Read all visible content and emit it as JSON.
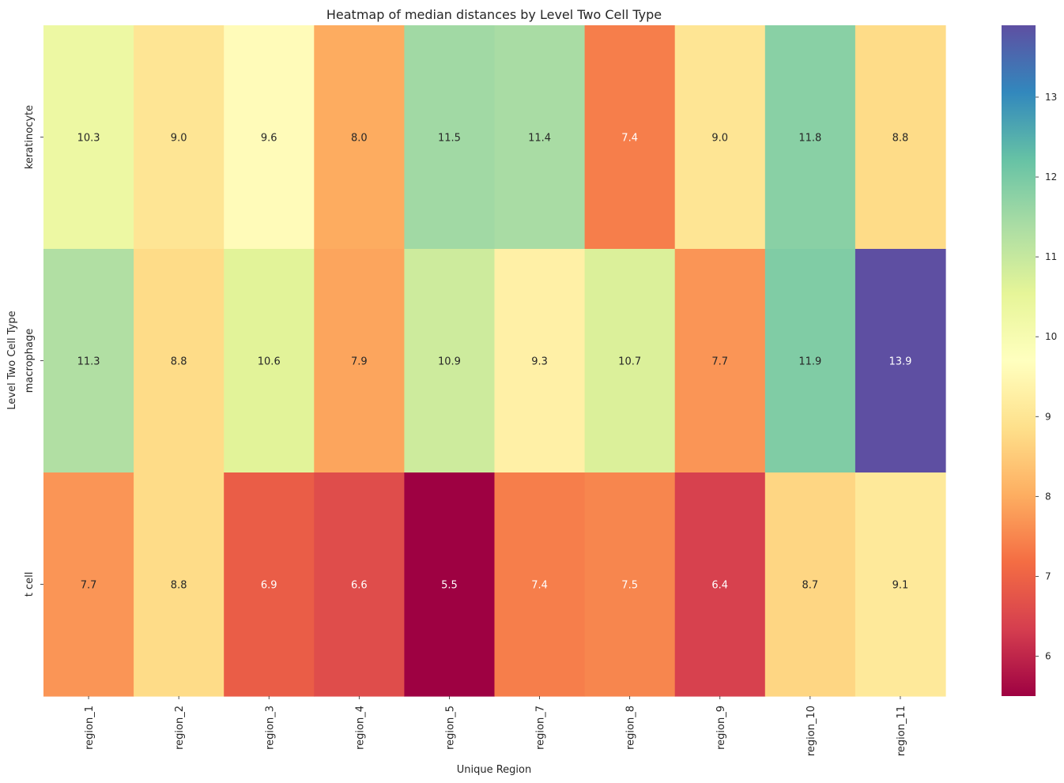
{
  "chart_data": {
    "type": "heatmap",
    "title": "Heatmap of median distances by Level Two Cell Type",
    "xlabel": "Unique Region",
    "ylabel": "Level Two Cell Type",
    "columns": [
      "region_1",
      "region_2",
      "region_3",
      "region_4",
      "region_5",
      "region_7",
      "region_8",
      "region_9",
      "region_10",
      "region_11"
    ],
    "rows": [
      "keratinocyte",
      "macrophage",
      "t cell"
    ],
    "values": [
      [
        10.3,
        9.0,
        9.6,
        8.0,
        11.5,
        11.4,
        7.4,
        9.0,
        11.8,
        8.8
      ],
      [
        11.3,
        8.8,
        10.6,
        7.9,
        10.9,
        9.3,
        10.7,
        7.7,
        11.9,
        13.9
      ],
      [
        7.7,
        8.8,
        6.9,
        6.6,
        5.5,
        7.4,
        7.5,
        6.4,
        8.7,
        9.1
      ]
    ],
    "value_labels": [
      [
        "10.3",
        "9.0",
        "9.6",
        "8.0",
        "11.5",
        "11.4",
        "7.4",
        "9.0",
        "11.8",
        "8.8"
      ],
      [
        "11.3",
        "8.8",
        "10.6",
        "7.9",
        "10.9",
        "9.3",
        "10.7",
        "7.7",
        "11.9",
        "13.9"
      ],
      [
        "7.7",
        "8.8",
        "6.9",
        "6.6",
        "5.5",
        "7.4",
        "7.5",
        "6.4",
        "8.7",
        "9.1"
      ]
    ],
    "colormap": "Spectral",
    "vmin": 5.5,
    "vmax": 13.9,
    "colorbar_ticks": [
      6,
      7,
      8,
      9,
      10,
      11,
      12,
      13
    ],
    "colorbar_tick_labels": [
      "6",
      "7",
      "8",
      "9",
      "10",
      "11",
      "12",
      "13"
    ],
    "colorbar_location": "right",
    "grid": false
  }
}
